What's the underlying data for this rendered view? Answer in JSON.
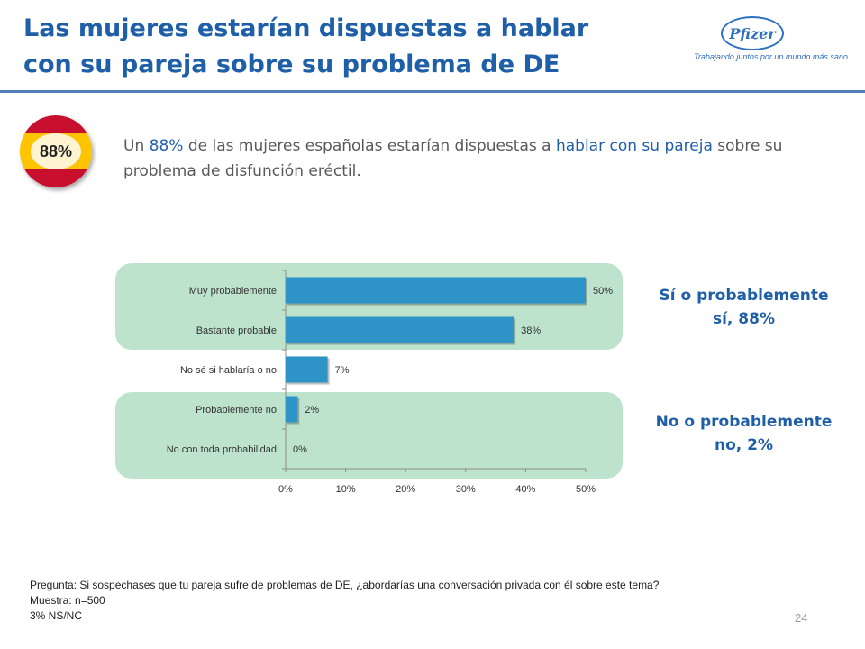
{
  "title": {
    "line1": "Las mujeres estarían dispuestas a hablar",
    "line2": "con su pareja sobre su problema de DE"
  },
  "logo": {
    "name": "Pfizer",
    "tagline": "Trabajando juntos por un mundo más sano"
  },
  "badge": {
    "value": "88%"
  },
  "intro": {
    "part1": "Un ",
    "hl1": "88%",
    "part2": " de las mujeres españolas estarían dispuestas a ",
    "hl2": "hablar con su pareja",
    "part3": " sobre su problema de disfunción eréctil."
  },
  "notes": {
    "positive": "Sí o probablemente sí, 88%",
    "negative": "No o probablemente no, 2%"
  },
  "footer": {
    "question": "Pregunta: Si sospechases que tu pareja sufre de problemas de DE, ¿abordarías una conversación privada con él sobre este tema?",
    "sample": "Muestra: n=500",
    "nsnc": "3% NS/NC"
  },
  "page_number": "24",
  "colors": {
    "bar": "#2e93c7",
    "band": "#bde3cd",
    "title": "#1f5fa8"
  },
  "chart_data": {
    "type": "bar",
    "orientation": "horizontal",
    "categories": [
      "Muy probablemente",
      "Bastante probable",
      "No sé si hablaría o no",
      "Probablemente no",
      "No con toda probabilidad"
    ],
    "values": [
      50,
      38,
      7,
      2,
      0
    ],
    "value_labels": [
      "50%",
      "38%",
      "7%",
      "2%",
      "0%"
    ],
    "xlim": [
      0,
      50
    ],
    "xticks": [
      "0%",
      "10%",
      "20%",
      "30%",
      "40%",
      "50%"
    ],
    "xlabel": "",
    "ylabel": ""
  }
}
